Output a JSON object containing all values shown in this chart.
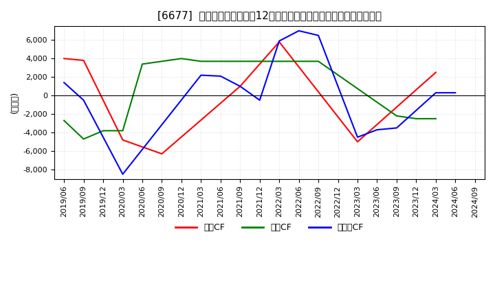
{
  "title": "[6677]  キャッシュフローの12か月移動合計の対前年同期増減額の推移",
  "ylabel": "(百万円)",
  "ylim": [
    -9000,
    7500
  ],
  "yticks": [
    -8000,
    -6000,
    -4000,
    -2000,
    0,
    2000,
    4000,
    6000
  ],
  "legend_labels": [
    "営業CF",
    "投資CF",
    "フリーCF"
  ],
  "legend_colors": [
    "#ff0000",
    "#008000",
    "#0000ff"
  ],
  "dates": [
    "2019/06",
    "2019/09",
    "2019/12",
    "2020/03",
    "2020/06",
    "2020/09",
    "2020/12",
    "2021/03",
    "2021/06",
    "2021/09",
    "2021/12",
    "2022/03",
    "2022/06",
    "2022/09",
    "2022/12",
    "2023/03",
    "2023/06",
    "2023/09",
    "2023/12",
    "2024/03",
    "2024/06",
    "2024/09"
  ],
  "operating_cf": [
    4000,
    3800,
    null,
    -4800,
    null,
    -6300,
    null,
    null,
    null,
    1000,
    null,
    5800,
    null,
    null,
    null,
    -5000,
    null,
    null,
    null,
    2500,
    null,
    null
  ],
  "investing_cf": [
    -2700,
    -4700,
    -3800,
    -3800,
    3400,
    3700,
    4000,
    3700,
    null,
    null,
    null,
    null,
    null,
    3700,
    null,
    null,
    null,
    -2200,
    -2500,
    -2500,
    null,
    null
  ],
  "free_cf": [
    1400,
    -500,
    null,
    -8500,
    null,
    null,
    null,
    2200,
    2100,
    1000,
    -500,
    5900,
    7000,
    6500,
    null,
    -4500,
    -3700,
    -3500,
    null,
    300,
    300,
    null
  ]
}
